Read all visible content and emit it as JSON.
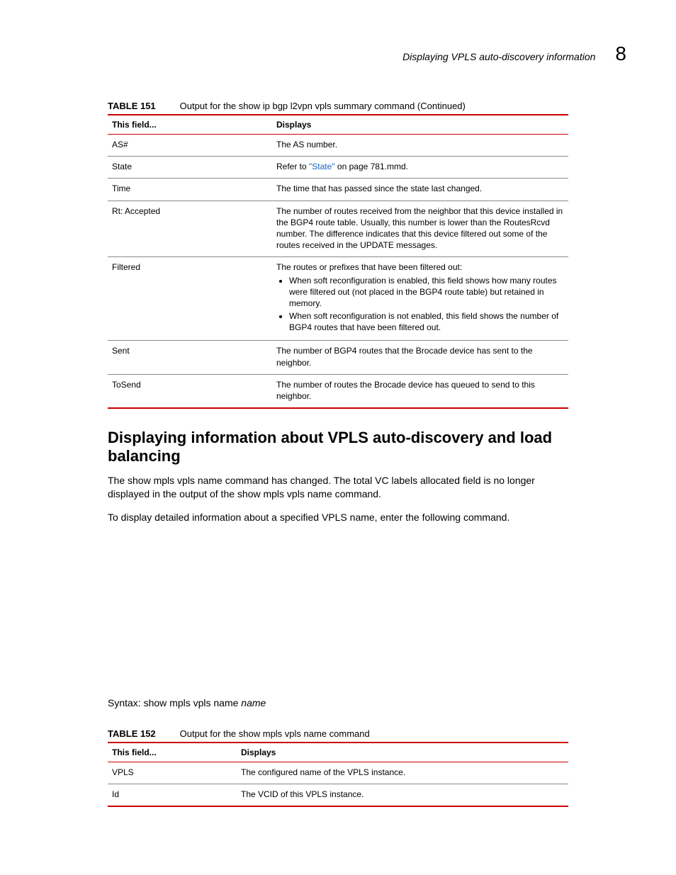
{
  "header": {
    "title": "Displaying VPLS auto-discovery information",
    "chapter": "8"
  },
  "table151": {
    "label": "TABLE 151",
    "caption": "Output for the show ip bgp l2vpn vpls summary command (Continued)",
    "col1": "This field...",
    "col2": "Displays",
    "rows": {
      "as": {
        "f": "AS#",
        "d": "The AS number."
      },
      "state": {
        "f": "State",
        "d_pre": "Refer to ",
        "link": "\"State\"",
        "d_post": " on page 781.mmd."
      },
      "time": {
        "f": "Time",
        "d": "The time that has passed since the state last changed."
      },
      "rt": {
        "f": "Rt: Accepted",
        "d": "The number of routes received from the neighbor that this device installed in the BGP4 route table. Usually, this number is lower than the RoutesRcvd number. The difference indicates that this device filtered out some of the routes received in the UPDATE messages."
      },
      "filtered": {
        "f": "Filtered",
        "lead": "The routes or prefixes that have been filtered out:",
        "b1": "When soft reconfiguration is enabled, this field shows how many routes were filtered out (not placed in the BGP4 route table) but retained in memory.",
        "b2": "When soft reconfiguration is not enabled, this field shows the number of BGP4 routes that have been filtered out."
      },
      "sent": {
        "f": "Sent",
        "d": "The number of BGP4 routes that the Brocade device has sent to the neighbor."
      },
      "tosend": {
        "f": "ToSend",
        "d": "The number of routes the Brocade device has queued to send to this neighbor."
      }
    }
  },
  "section": {
    "heading": "Displaying information about VPLS auto-discovery and load balancing",
    "p1": "The show mpls vpls name command has changed. The total VC labels allocated field is no longer displayed in the output of the show mpls vpls name command.",
    "p2": "To display detailed information about a specified VPLS name, enter the following command.",
    "syntax_label": "Syntax:  show mpls vpls name ",
    "syntax_arg": "name"
  },
  "table152": {
    "label": "TABLE 152",
    "caption": "Output for the show mpls vpls name command",
    "col1": "This field...",
    "col2": "Displays",
    "rows": {
      "vpls": {
        "f": "VPLS",
        "d": "The configured name of the VPLS instance."
      },
      "id": {
        "f": "Id",
        "d": "The VCID of this VPLS instance."
      }
    }
  }
}
